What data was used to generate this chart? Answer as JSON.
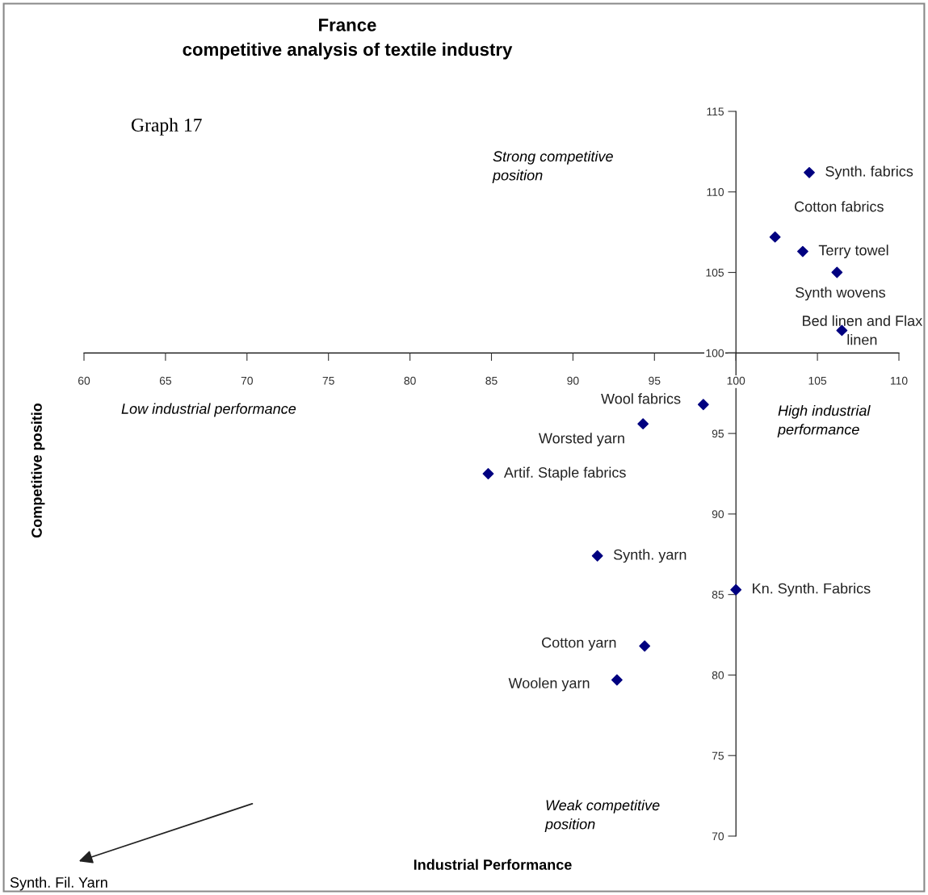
{
  "chart_data": {
    "type": "scatter",
    "title": "France\ncompetitive analysis of textile industry",
    "xlabel": "Industrial Performance",
    "ylabel": "Competitive positio",
    "x": [
      104.5,
      102.4,
      104.1,
      106.2,
      106.5,
      98.0,
      94.3,
      84.8,
      91.5,
      100.0,
      94.4,
      92.7
    ],
    "series": [
      {
        "color": "#000080",
        "values": [
          111.2,
          107.2,
          106.3,
          105.0,
          101.4,
          96.8,
          95.6,
          92.5,
          87.4,
          85.3,
          81.8,
          79.7
        ]
      }
    ],
    "marker": "diamond",
    "grid": false,
    "xlim": [
      60,
      110
    ],
    "xticks": [
      60,
      65,
      70,
      75,
      80,
      85,
      90,
      95,
      100,
      105,
      110
    ],
    "ylim": [
      70,
      115
    ],
    "yticks": [
      70,
      75,
      80,
      85,
      90,
      95,
      100,
      105,
      110,
      115
    ],
    "annotations": [
      {
        "text": "Synth. fabrics",
        "x": 104.5,
        "y": 111.2
      },
      {
        "text": "Cotton fabrics",
        "x": 102.4,
        "y": 107.2
      },
      {
        "text": "Terry towel",
        "x": 104.1,
        "y": 106.3
      },
      {
        "text": "Synth wovens",
        "x": 106.2,
        "y": 105.0
      },
      {
        "text": "Bed linen and Flax\nlinen",
        "x": 106.5,
        "y": 101.4
      },
      {
        "text": "Wool fabrics",
        "x": 98.0,
        "y": 96.8
      },
      {
        "text": "Worsted yarn",
        "x": 94.3,
        "y": 95.6
      },
      {
        "text": "Artif. Staple fabrics",
        "x": 84.8,
        "y": 92.5
      },
      {
        "text": "Synth. yarn",
        "x": 91.5,
        "y": 87.4
      },
      {
        "text": "Kn. Synth. Fabrics",
        "x": 100.0,
        "y": 85.3
      },
      {
        "text": "Cotton yarn",
        "x": 94.4,
        "y": 81.8
      },
      {
        "text": "Woolen yarn",
        "x": 92.7,
        "y": 79.7
      },
      "Graph 17",
      "Strong competitive\nposition",
      "Low industrial performance",
      "High industrial\nperformance",
      "Weak competitive\nposition",
      "Synth. Fil. Yarn"
    ]
  }
}
